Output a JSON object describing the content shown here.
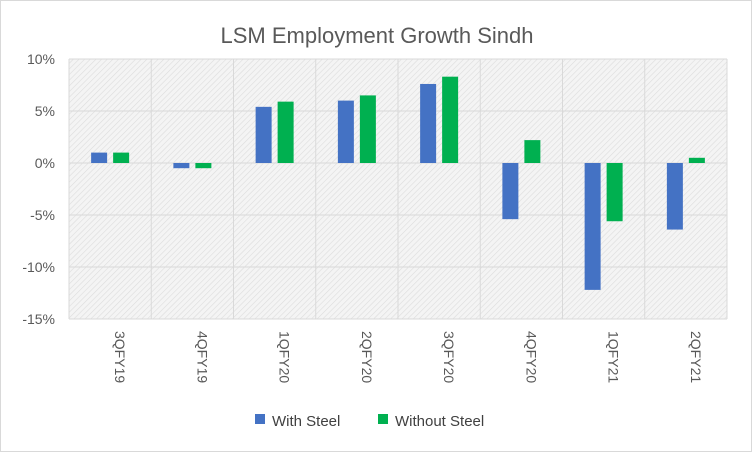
{
  "chart_data": {
    "type": "bar",
    "title": "LSM Employment Growth Sindh",
    "categories": [
      "3QFY19",
      "4QFY19",
      "1QFY20",
      "2QFY20",
      "3QFY20",
      "4QFY20",
      "1QFY21",
      "2QFY21"
    ],
    "series": [
      {
        "name": "With Steel",
        "color": "#4472c4",
        "values": [
          1.0,
          -0.5,
          5.4,
          6.0,
          7.6,
          -5.4,
          -12.2,
          -6.4
        ]
      },
      {
        "name": "Without Steel",
        "color": "#00b050",
        "values": [
          1.0,
          -0.5,
          5.9,
          6.5,
          8.3,
          2.2,
          -5.6,
          0.5
        ]
      }
    ],
    "yticks": [
      "10%",
      "5%",
      "0%",
      "-5%",
      "-10%",
      "-15%"
    ],
    "ytick_values": [
      10,
      5,
      0,
      -5,
      -10,
      -15
    ],
    "ylim": [
      -15,
      10
    ],
    "xlabel": "",
    "ylabel": "",
    "grid": true,
    "plot_fill": "hatched light gray",
    "legend_position": "bottom"
  }
}
